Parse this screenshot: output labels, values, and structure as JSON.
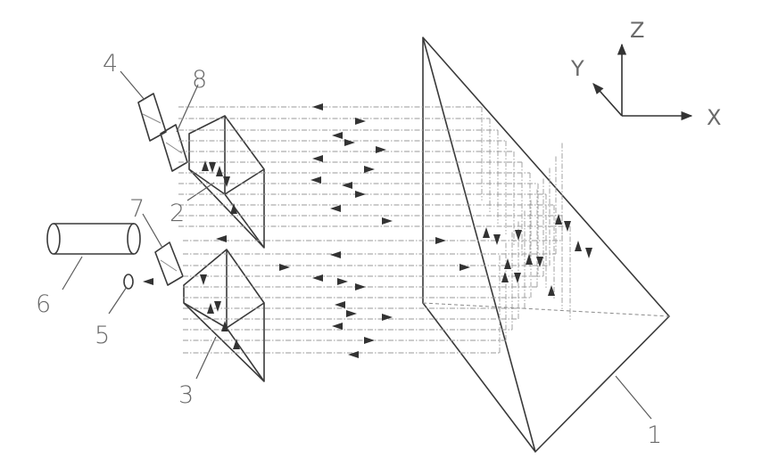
{
  "labels": {
    "l1": "1",
    "l2": "2",
    "l3": "3",
    "l4": "4",
    "l5": "5",
    "l6": "6",
    "l7": "7",
    "l8": "8"
  },
  "axes": {
    "x": "X",
    "y": "Y",
    "z": "Z"
  }
}
